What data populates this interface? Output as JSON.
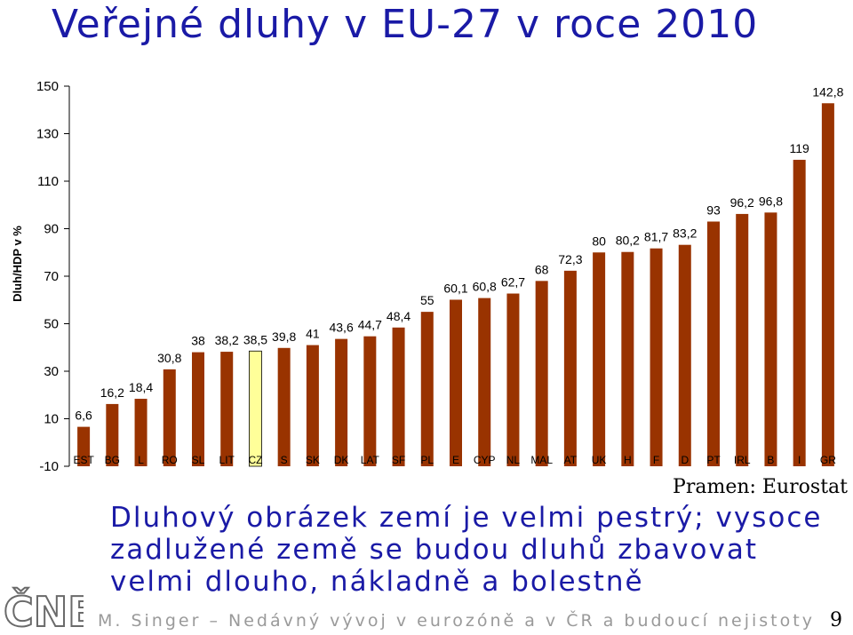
{
  "slide": {
    "title": "Veřejné dluhy v EU-27 v roce 2010",
    "source": "Pramen: Eurostat",
    "caption": "Dluhový obrázek zemí je velmi pestrý; vysoce zadlužené země se budou dluhů zbavovat velmi dlouho, nákladně a bolestně",
    "footer": "M. Singer – Nedávný vývoj v eurozóně a v ČR a budoucí nejistoty",
    "page_number": "9",
    "logo_text": "ČNB"
  },
  "colors": {
    "bar": "#993300",
    "highlight_bar": "#ffff99",
    "title": "#1a1aa6",
    "footer": "#9a9a9a"
  },
  "chart_data": {
    "type": "bar",
    "title": "",
    "xlabel": "",
    "ylabel": "Dluh/HDP v %",
    "ylim": [
      -10,
      150
    ],
    "yticks": [
      -10,
      10,
      30,
      50,
      70,
      90,
      110,
      130,
      150
    ],
    "grid": false,
    "categories": [
      "EST",
      "BG",
      "L",
      "RO",
      "SL",
      "LIT",
      "CZ",
      "S",
      "SK",
      "DK",
      "LAT",
      "SF",
      "PL",
      "E",
      "CYP",
      "NL",
      "MAL",
      "AT",
      "UK",
      "H",
      "F",
      "D",
      "PT",
      "IRL",
      "B",
      "I",
      "GR"
    ],
    "values": [
      6.6,
      16.2,
      18.4,
      30.8,
      38,
      38.2,
      38.5,
      39.8,
      41,
      43.6,
      44.7,
      48.4,
      55,
      60.1,
      60.8,
      62.7,
      68,
      72.3,
      80,
      80.2,
      81.7,
      83.2,
      93,
      96.2,
      96.8,
      119,
      142.8
    ],
    "data_labels": [
      "6,6",
      "16,2",
      "18,4",
      "30,8",
      "38",
      "38,2",
      "38,5",
      "39,8",
      "41",
      "43,6",
      "44,7",
      "48,4",
      "55",
      "60,1",
      "60,8",
      "62,7",
      "68",
      "72,3",
      "80",
      "80,2",
      "81,7",
      "83,2",
      "93",
      "96,2",
      "96,8",
      "119",
      "142,8"
    ],
    "highlight": "CZ"
  }
}
